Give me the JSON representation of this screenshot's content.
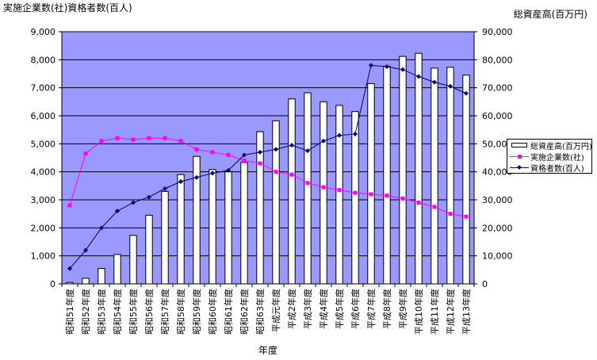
{
  "chart_data": {
    "type": "bar+line",
    "title_left": "実施企業数(社)資格者数(百人)",
    "title_right": "総資産高(百万円)",
    "xlabel": "年度",
    "categories": [
      "昭和51年度",
      "昭和52年度",
      "昭和53年度",
      "昭和54年度",
      "昭和55年度",
      "昭和56年度",
      "昭和57年度",
      "昭和58年度",
      "昭和59年度",
      "昭和60年度",
      "昭和61年度",
      "昭和62年度",
      "昭和63年度",
      "平成元年度",
      "平成2年度",
      "平成3年度",
      "平成4年度",
      "平成5年度",
      "平成6年度",
      "平成7年度",
      "平成8年度",
      "平成9年度",
      "平成10年度",
      "平成11年度",
      "平成12年度",
      "平成13年度"
    ],
    "left_axis": {
      "min": 0,
      "max": 9000,
      "step": 1000,
      "ticks": [
        "0",
        "1,000",
        "2,000",
        "3,000",
        "4,000",
        "5,000",
        "6,000",
        "7,000",
        "8,000",
        "9,000"
      ]
    },
    "right_axis": {
      "min": 0,
      "max": 90000,
      "step": 10000,
      "ticks": [
        "0",
        "10,000",
        "20,000",
        "30,000",
        "40,000",
        "50,000",
        "60,000",
        "70,000",
        "80,000",
        "90,000"
      ]
    },
    "plot_background": "#9999ff",
    "series": [
      {
        "name": "総資産高(百万円)",
        "type": "bar",
        "axis": "right",
        "color": "#ffffff",
        "values": [
          500,
          2000,
          5500,
          10500,
          17300,
          24500,
          33000,
          39000,
          45500,
          40800,
          40000,
          43300,
          54300,
          58200,
          66000,
          68200,
          65000,
          63700,
          61500,
          71500,
          77700,
          81200,
          82300,
          77000,
          77300,
          74500
        ]
      },
      {
        "name": "実施企業数(社)",
        "type": "line",
        "axis": "left",
        "color": "#ff00ff",
        "marker": "square",
        "values": [
          2800,
          4650,
          5100,
          5200,
          5150,
          5200,
          5200,
          5100,
          4800,
          4700,
          4600,
          4400,
          4300,
          4000,
          3900,
          3600,
          3450,
          3350,
          3250,
          3200,
          3150,
          3050,
          2900,
          2750,
          2500,
          2400
        ]
      },
      {
        "name": "資格者数(百人)",
        "type": "line",
        "axis": "left",
        "color": "#000080",
        "marker": "diamond",
        "values": [
          550,
          1200,
          2000,
          2600,
          2900,
          3100,
          3400,
          3650,
          3800,
          3950,
          4050,
          4600,
          4700,
          4800,
          4950,
          4750,
          5100,
          5300,
          5350,
          7800,
          7750,
          7650,
          7400,
          7200,
          7050,
          6800
        ]
      }
    ],
    "legend_position": "right"
  }
}
